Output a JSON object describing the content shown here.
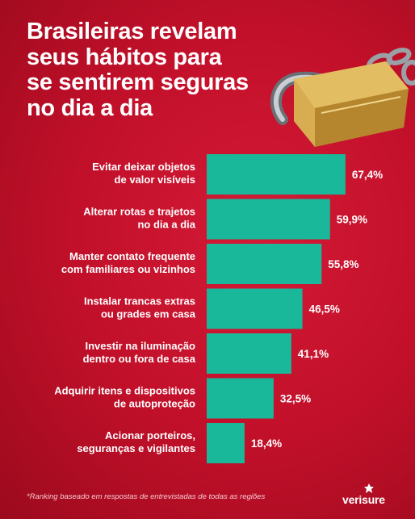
{
  "header": {
    "title_lines": [
      "Brasileiras revelam",
      "seus hábitos para",
      "se sentirem seguras",
      "no dia a dia"
    ]
  },
  "chart_data": {
    "type": "bar",
    "orientation": "horizontal",
    "categories": [
      [
        "Evitar deixar objetos",
        "de valor visíveis"
      ],
      [
        "Alterar rotas e trajetos",
        "no dia a dia"
      ],
      [
        "Manter contato frequente",
        "com familiares ou vizinhos"
      ],
      [
        "Instalar trancas extras",
        "ou grades em casa"
      ],
      [
        "Investir na iluminação",
        "dentro ou fora de casa"
      ],
      [
        "Adquirir itens e dispositivos",
        "de autoproteção"
      ],
      [
        "Acionar porteiros,",
        "seguranças e vigilantes"
      ]
    ],
    "values": [
      67.4,
      59.9,
      55.8,
      46.5,
      41.1,
      32.5,
      18.4
    ],
    "value_labels": [
      "67,4%",
      "59,9%",
      "55,8%",
      "46,5%",
      "41,1%",
      "32,5%",
      "18,4%"
    ],
    "bar_color": "#19b89a",
    "grid": false
  },
  "footer": {
    "note": "*Ranking baseado em respostas de entrevistadas de todas as regiões",
    "brand": "verisure"
  },
  "colors": {
    "background": "#c2102a",
    "bar": "#19b89a",
    "text": "#ffffff"
  },
  "icons": [
    "padlock-icon",
    "verisure-logo-icon"
  ]
}
